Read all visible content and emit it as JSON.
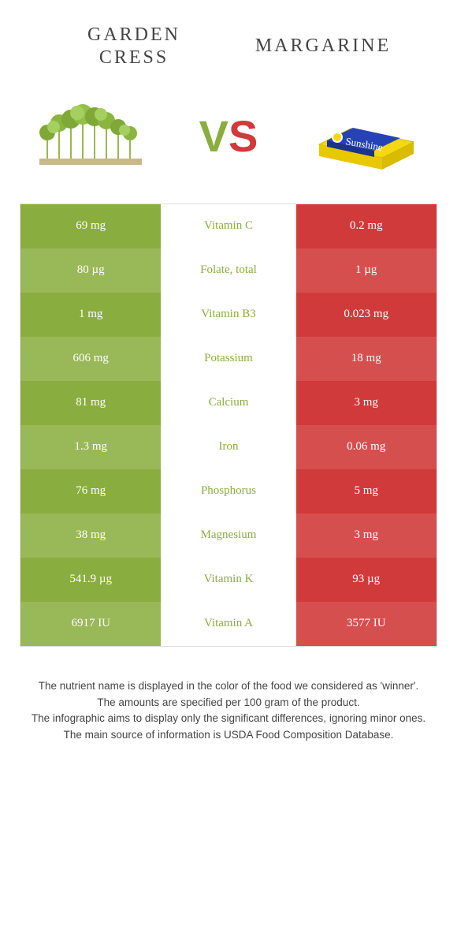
{
  "header": {
    "left_line1": "Garden",
    "left_line2": "cress",
    "right": "Margarine"
  },
  "vs": {
    "v": "V",
    "s": "S"
  },
  "colors": {
    "green": "#8aad3f",
    "green_alt": "#99b857",
    "red": "#d13a3a",
    "red_alt": "#d64f4f"
  },
  "rows": [
    {
      "left": "69 mg",
      "mid": "Vitamin C",
      "right": "0.2 mg",
      "winner": "green"
    },
    {
      "left": "80 µg",
      "mid": "Folate, total",
      "right": "1 µg",
      "winner": "green"
    },
    {
      "left": "1 mg",
      "mid": "Vitamin B3",
      "right": "0.023 mg",
      "winner": "green"
    },
    {
      "left": "606 mg",
      "mid": "Potassium",
      "right": "18 mg",
      "winner": "green"
    },
    {
      "left": "81 mg",
      "mid": "Calcium",
      "right": "3 mg",
      "winner": "green"
    },
    {
      "left": "1.3 mg",
      "mid": "Iron",
      "right": "0.06 mg",
      "winner": "green"
    },
    {
      "left": "76 mg",
      "mid": "Phosphorus",
      "right": "5 mg",
      "winner": "green"
    },
    {
      "left": "38 mg",
      "mid": "Magnesium",
      "right": "3 mg",
      "winner": "green"
    },
    {
      "left": "541.9 µg",
      "mid": "Vitamin K",
      "right": "93 µg",
      "winner": "green"
    },
    {
      "left": "6917 IU",
      "mid": "Vitamin A",
      "right": "3577 IU",
      "winner": "green"
    }
  ],
  "footer": {
    "l1": "The nutrient name is displayed in the color of the food we considered as 'winner'.",
    "l2": "The amounts are specified per 100 gram of the product.",
    "l3": "The infographic aims to display only the significant differences, ignoring minor ones.",
    "l4": "The main source of information is USDA Food Composition Database."
  }
}
